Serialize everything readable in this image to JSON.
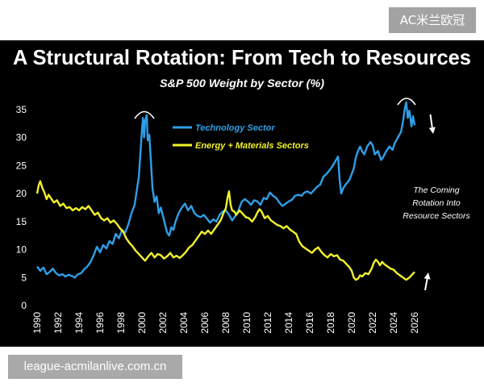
{
  "watermarks": {
    "top_right": "AC米兰欧冠",
    "bottom_left": "league-acmilanlive.com.cn"
  },
  "chart_data": {
    "type": "line",
    "title": "A Structural Rotation: From Tech to Resources",
    "subtitle": "S&P 500 Weight by Sector (%)",
    "xlabel": "",
    "ylabel": "",
    "xlim": [
      1990,
      2026
    ],
    "ylim": [
      0,
      37
    ],
    "x_ticks": [
      "1990",
      "1992",
      "1994",
      "1996",
      "1998",
      "2000",
      "2002",
      "2004",
      "2006",
      "2008",
      "2010",
      "2012",
      "2014",
      "2016",
      "2018",
      "2020",
      "2022",
      "2024",
      "2026"
    ],
    "y_ticks": [
      0,
      5,
      10,
      15,
      20,
      25,
      30,
      35
    ],
    "grid": false,
    "legend": "top-center",
    "background": "#000000",
    "series": [
      {
        "name": "Technology Sector",
        "color": "#2e9fe8",
        "points": [
          [
            1990.0,
            7.0
          ],
          [
            1990.3,
            6.2
          ],
          [
            1990.6,
            6.8
          ],
          [
            1990.9,
            5.6
          ],
          [
            1991.2,
            6.0
          ],
          [
            1991.5,
            6.6
          ],
          [
            1991.8,
            5.8
          ],
          [
            1992.1,
            5.4
          ],
          [
            1992.4,
            5.6
          ],
          [
            1992.7,
            5.2
          ],
          [
            1993.0,
            5.5
          ],
          [
            1993.3,
            5.3
          ],
          [
            1993.6,
            5.0
          ],
          [
            1993.9,
            5.6
          ],
          [
            1994.2,
            5.8
          ],
          [
            1994.5,
            6.5
          ],
          [
            1994.8,
            7.0
          ],
          [
            1995.1,
            7.8
          ],
          [
            1995.4,
            9.0
          ],
          [
            1995.7,
            10.5
          ],
          [
            1996.0,
            9.5
          ],
          [
            1996.3,
            10.8
          ],
          [
            1996.6,
            10.2
          ],
          [
            1996.9,
            11.5
          ],
          [
            1997.2,
            11.0
          ],
          [
            1997.5,
            12.8
          ],
          [
            1997.8,
            12.0
          ],
          [
            1998.1,
            13.5
          ],
          [
            1998.4,
            13.0
          ],
          [
            1998.7,
            14.5
          ],
          [
            1999.0,
            16.5
          ],
          [
            1999.3,
            18.0
          ],
          [
            1999.5,
            20.5
          ],
          [
            1999.7,
            23.0
          ],
          [
            1999.85,
            27.0
          ],
          [
            2000.0,
            31.5
          ],
          [
            2000.1,
            33.5
          ],
          [
            2000.2,
            30.0
          ],
          [
            2000.3,
            33.0
          ],
          [
            2000.45,
            34.0
          ],
          [
            2000.55,
            29.5
          ],
          [
            2000.7,
            30.5
          ],
          [
            2000.85,
            26.0
          ],
          [
            2001.0,
            21.0
          ],
          [
            2001.2,
            18.5
          ],
          [
            2001.4,
            19.5
          ],
          [
            2001.6,
            16.5
          ],
          [
            2001.8,
            17.5
          ],
          [
            2002.0,
            16.0
          ],
          [
            2002.2,
            14.5
          ],
          [
            2002.4,
            13.0
          ],
          [
            2002.6,
            12.5
          ],
          [
            2002.8,
            14.0
          ],
          [
            2003.0,
            13.5
          ],
          [
            2003.2,
            15.0
          ],
          [
            2003.5,
            16.5
          ],
          [
            2003.8,
            17.5
          ],
          [
            2004.1,
            18.2
          ],
          [
            2004.4,
            17.0
          ],
          [
            2004.7,
            17.8
          ],
          [
            2005.0,
            16.5
          ],
          [
            2005.3,
            16.0
          ],
          [
            2005.6,
            15.8
          ],
          [
            2005.9,
            16.2
          ],
          [
            2006.2,
            15.5
          ],
          [
            2006.5,
            14.8
          ],
          [
            2006.8,
            15.4
          ],
          [
            2007.1,
            15.0
          ],
          [
            2007.4,
            16.2
          ],
          [
            2007.7,
            16.8
          ],
          [
            2008.0,
            17.0
          ],
          [
            2008.3,
            16.2
          ],
          [
            2008.6,
            15.2
          ],
          [
            2008.9,
            16.0
          ],
          [
            2009.2,
            17.0
          ],
          [
            2009.5,
            18.5
          ],
          [
            2009.8,
            19.0
          ],
          [
            2010.1,
            18.6
          ],
          [
            2010.4,
            18.0
          ],
          [
            2010.7,
            18.8
          ],
          [
            2011.0,
            18.6
          ],
          [
            2011.3,
            18.0
          ],
          [
            2011.6,
            19.2
          ],
          [
            2011.9,
            19.0
          ],
          [
            2012.2,
            20.2
          ],
          [
            2012.5,
            19.6
          ],
          [
            2012.8,
            19.2
          ],
          [
            2013.1,
            18.4
          ],
          [
            2013.4,
            17.8
          ],
          [
            2013.7,
            18.2
          ],
          [
            2014.0,
            18.6
          ],
          [
            2014.3,
            18.9
          ],
          [
            2014.6,
            19.6
          ],
          [
            2014.9,
            19.8
          ],
          [
            2015.2,
            19.6
          ],
          [
            2015.5,
            20.2
          ],
          [
            2015.8,
            20.4
          ],
          [
            2016.1,
            20.0
          ],
          [
            2016.4,
            20.6
          ],
          [
            2016.7,
            21.2
          ],
          [
            2017.0,
            21.6
          ],
          [
            2017.3,
            23.0
          ],
          [
            2017.6,
            23.5
          ],
          [
            2017.9,
            24.2
          ],
          [
            2018.2,
            25.0
          ],
          [
            2018.5,
            26.0
          ],
          [
            2018.7,
            26.6
          ],
          [
            2018.85,
            22.5
          ],
          [
            2019.0,
            20.0
          ],
          [
            2019.2,
            21.0
          ],
          [
            2019.5,
            21.8
          ],
          [
            2019.8,
            22.5
          ],
          [
            2020.0,
            23.5
          ],
          [
            2020.2,
            24.5
          ],
          [
            2020.4,
            26.5
          ],
          [
            2020.6,
            27.6
          ],
          [
            2020.8,
            28.4
          ],
          [
            2021.0,
            27.5
          ],
          [
            2021.2,
            27.0
          ],
          [
            2021.5,
            28.5
          ],
          [
            2021.8,
            29.2
          ],
          [
            2022.0,
            28.6
          ],
          [
            2022.2,
            27.0
          ],
          [
            2022.5,
            27.6
          ],
          [
            2022.8,
            26.0
          ],
          [
            2023.0,
            26.5
          ],
          [
            2023.3,
            27.6
          ],
          [
            2023.6,
            28.4
          ],
          [
            2023.9,
            27.8
          ],
          [
            2024.1,
            29.0
          ],
          [
            2024.4,
            30.0
          ],
          [
            2024.7,
            31.0
          ],
          [
            2024.9,
            33.0
          ],
          [
            2025.05,
            35.0
          ],
          [
            2025.2,
            36.3
          ],
          [
            2025.35,
            33.5
          ],
          [
            2025.5,
            34.8
          ],
          [
            2025.7,
            32.0
          ],
          [
            2025.85,
            33.8
          ],
          [
            2026.0,
            32.2
          ]
        ]
      },
      {
        "name": "Energy + Materials Sectors",
        "color": "#f2f22a",
        "points": [
          [
            1990.0,
            20.0
          ],
          [
            1990.15,
            21.5
          ],
          [
            1990.3,
            22.2
          ],
          [
            1990.5,
            21.0
          ],
          [
            1990.7,
            20.2
          ],
          [
            1990.9,
            19.0
          ],
          [
            1991.1,
            19.8
          ],
          [
            1991.3,
            19.2
          ],
          [
            1991.6,
            18.4
          ],
          [
            1991.9,
            18.8
          ],
          [
            1992.2,
            17.8
          ],
          [
            1992.5,
            18.2
          ],
          [
            1992.8,
            17.4
          ],
          [
            1993.1,
            17.6
          ],
          [
            1993.4,
            17.0
          ],
          [
            1993.7,
            17.4
          ],
          [
            1994.0,
            17.0
          ],
          [
            1994.3,
            17.6
          ],
          [
            1994.6,
            17.2
          ],
          [
            1994.9,
            17.8
          ],
          [
            1995.2,
            17.0
          ],
          [
            1995.5,
            16.2
          ],
          [
            1995.8,
            16.6
          ],
          [
            1996.1,
            15.6
          ],
          [
            1996.4,
            15.2
          ],
          [
            1996.7,
            15.6
          ],
          [
            1997.0,
            14.8
          ],
          [
            1997.3,
            15.2
          ],
          [
            1997.6,
            14.6
          ],
          [
            1997.9,
            13.8
          ],
          [
            1998.2,
            13.2
          ],
          [
            1998.5,
            12.0
          ],
          [
            1998.8,
            11.2
          ],
          [
            1999.1,
            10.6
          ],
          [
            1999.4,
            9.8
          ],
          [
            1999.7,
            9.2
          ],
          [
            2000.0,
            8.6
          ],
          [
            2000.3,
            8.0
          ],
          [
            2000.6,
            8.8
          ],
          [
            2000.9,
            9.4
          ],
          [
            2001.2,
            8.6
          ],
          [
            2001.5,
            9.2
          ],
          [
            2001.8,
            9.0
          ],
          [
            2002.1,
            8.4
          ],
          [
            2002.4,
            8.8
          ],
          [
            2002.7,
            9.4
          ],
          [
            2003.0,
            8.6
          ],
          [
            2003.3,
            8.9
          ],
          [
            2003.6,
            8.5
          ],
          [
            2003.9,
            9.0
          ],
          [
            2004.2,
            9.6
          ],
          [
            2004.5,
            10.4
          ],
          [
            2004.8,
            10.8
          ],
          [
            2005.1,
            11.6
          ],
          [
            2005.4,
            12.4
          ],
          [
            2005.7,
            13.2
          ],
          [
            2006.0,
            12.8
          ],
          [
            2006.3,
            13.4
          ],
          [
            2006.6,
            12.8
          ],
          [
            2006.9,
            13.6
          ],
          [
            2007.2,
            14.4
          ],
          [
            2007.5,
            15.2
          ],
          [
            2007.8,
            16.6
          ],
          [
            2008.0,
            17.4
          ],
          [
            2008.15,
            19.2
          ],
          [
            2008.3,
            20.4
          ],
          [
            2008.45,
            18.0
          ],
          [
            2008.6,
            17.0
          ],
          [
            2008.8,
            16.8
          ],
          [
            2009.0,
            16.2
          ],
          [
            2009.3,
            17.0
          ],
          [
            2009.6,
            16.4
          ],
          [
            2009.9,
            15.8
          ],
          [
            2010.2,
            15.6
          ],
          [
            2010.5,
            15.0
          ],
          [
            2010.8,
            15.8
          ],
          [
            2011.0,
            16.6
          ],
          [
            2011.2,
            17.2
          ],
          [
            2011.4,
            16.8
          ],
          [
            2011.7,
            15.6
          ],
          [
            2012.0,
            16.0
          ],
          [
            2012.3,
            15.2
          ],
          [
            2012.6,
            14.8
          ],
          [
            2012.9,
            14.4
          ],
          [
            2013.2,
            14.2
          ],
          [
            2013.5,
            13.8
          ],
          [
            2013.8,
            14.2
          ],
          [
            2014.1,
            13.6
          ],
          [
            2014.4,
            13.2
          ],
          [
            2014.7,
            12.8
          ],
          [
            2015.0,
            11.4
          ],
          [
            2015.3,
            10.6
          ],
          [
            2015.6,
            10.2
          ],
          [
            2015.9,
            9.8
          ],
          [
            2016.2,
            9.4
          ],
          [
            2016.5,
            10.0
          ],
          [
            2016.8,
            10.4
          ],
          [
            2017.1,
            9.6
          ],
          [
            2017.4,
            9.0
          ],
          [
            2017.7,
            8.6
          ],
          [
            2018.0,
            9.2
          ],
          [
            2018.3,
            8.8
          ],
          [
            2018.6,
            9.0
          ],
          [
            2018.9,
            8.2
          ],
          [
            2019.2,
            8.0
          ],
          [
            2019.5,
            7.4
          ],
          [
            2019.8,
            6.8
          ],
          [
            2020.0,
            6.2
          ],
          [
            2020.2,
            5.0
          ],
          [
            2020.4,
            4.6
          ],
          [
            2020.6,
            4.8
          ],
          [
            2020.8,
            5.4
          ],
          [
            2021.0,
            5.2
          ],
          [
            2021.3,
            5.8
          ],
          [
            2021.6,
            5.6
          ],
          [
            2021.9,
            6.6
          ],
          [
            2022.1,
            7.6
          ],
          [
            2022.3,
            8.2
          ],
          [
            2022.5,
            7.8
          ],
          [
            2022.7,
            7.2
          ],
          [
            2022.9,
            7.8
          ],
          [
            2023.1,
            7.4
          ],
          [
            2023.4,
            7.0
          ],
          [
            2023.7,
            6.6
          ],
          [
            2024.0,
            6.4
          ],
          [
            2024.3,
            5.8
          ],
          [
            2024.6,
            5.4
          ],
          [
            2024.9,
            5.0
          ],
          [
            2025.2,
            4.6
          ],
          [
            2025.5,
            5.0
          ],
          [
            2025.8,
            5.6
          ],
          [
            2026.0,
            6.0
          ]
        ]
      }
    ],
    "annotations": [
      "The Coming",
      "Rotation Into",
      "Resource Sectors"
    ]
  }
}
